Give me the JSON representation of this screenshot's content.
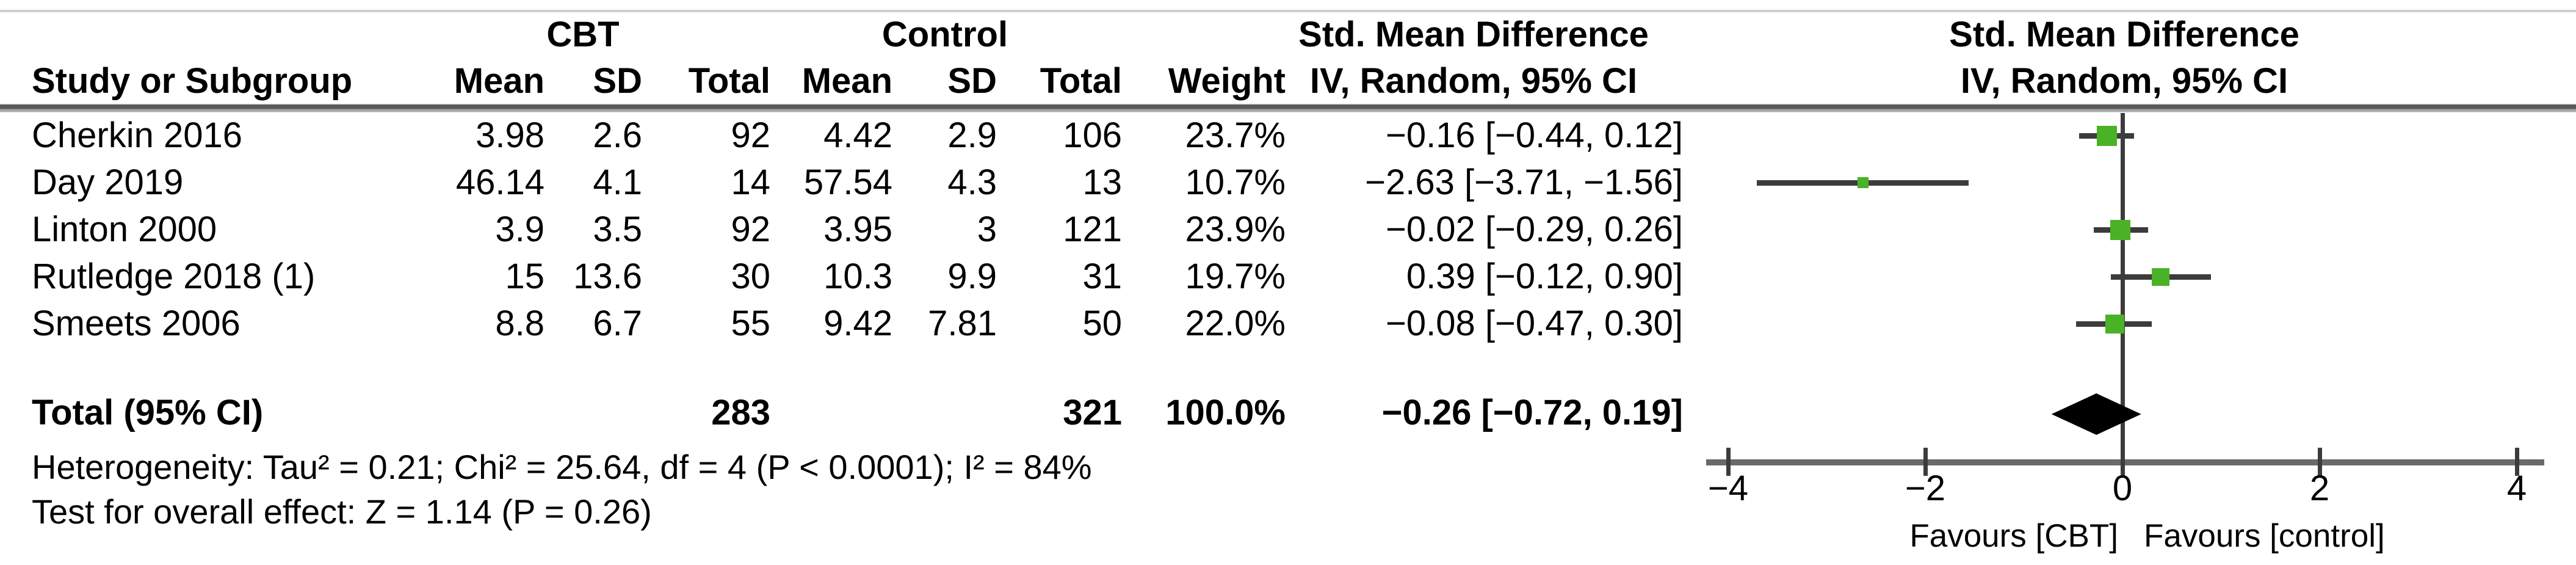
{
  "table": {
    "cbt_group_label": "CBT",
    "control_group_label": "Control",
    "smd_text_group_label": "Std. Mean Difference",
    "smd_plot_group_label": "Std. Mean Difference",
    "study_col_header": "Study or Subgroup",
    "sub_headers": {
      "mean_cbt": "Mean",
      "sd_cbt": "SD",
      "total_cbt": "Total",
      "mean_control": "Mean",
      "sd_control": "SD",
      "total_control": "Total",
      "weight": "Weight",
      "ci_text": "IV, Random, 95% CI",
      "ci_plot": "IV, Random, 95% CI"
    },
    "rows": [
      {
        "study": "Cherkin 2016",
        "mean1": "3.98",
        "sd1": "2.6",
        "total1": "92",
        "mean2": "4.42",
        "sd2": "2.9",
        "total2": "106",
        "weight": "23.7%",
        "ci": "−0.16 [−0.44, 0.12]"
      },
      {
        "study": "Day 2019",
        "mean1": "46.14",
        "sd1": "4.1",
        "total1": "14",
        "mean2": "57.54",
        "sd2": "4.3",
        "total2": "13",
        "weight": "10.7%",
        "ci": "−2.63 [−3.71, −1.56]"
      },
      {
        "study": "Linton 2000",
        "mean1": "3.9",
        "sd1": "3.5",
        "total1": "92",
        "mean2": "3.95",
        "sd2": "3",
        "total2": "121",
        "weight": "23.9%",
        "ci": "−0.02 [−0.29, 0.26]"
      },
      {
        "study": "Rutledge 2018 (1)",
        "mean1": "15",
        "sd1": "13.6",
        "total1": "30",
        "mean2": "10.3",
        "sd2": "9.9",
        "total2": "31",
        "weight": "19.7%",
        "ci": "0.39 [−0.12, 0.90]"
      },
      {
        "study": "Smeets 2006",
        "mean1": "8.8",
        "sd1": "6.7",
        "total1": "55",
        "mean2": "9.42",
        "sd2": "7.81",
        "total2": "50",
        "weight": "22.0%",
        "ci": "−0.08 [−0.47, 0.30]"
      }
    ],
    "total_row": {
      "label": "Total (95% CI)",
      "total1": "283",
      "total2": "321",
      "weight": "100.0%",
      "ci": "−0.26 [−0.72, 0.19]"
    },
    "footnotes": {
      "heterogeneity": "Heterogeneity: Tau² = 0.21; Chi² = 25.64, df = 4 (P < 0.0001); I² = 84%",
      "overall_effect": "Test for overall effect: Z = 1.14 (P = 0.26)"
    }
  },
  "chart_data": {
    "type": "forest",
    "effect_measure": "Std. Mean Difference (IV, Random, 95% CI)",
    "x_axis": {
      "ticks": [
        -4,
        -2,
        0,
        2,
        4
      ],
      "min": -4.2,
      "max": 4.3,
      "label_left": "Favours [CBT]",
      "label_right": "Favours [control]"
    },
    "studies": [
      {
        "name": "Cherkin 2016",
        "est": -0.16,
        "ci_low": -0.44,
        "ci_high": 0.12,
        "weight_pct": 23.7
      },
      {
        "name": "Day 2019",
        "est": -2.63,
        "ci_low": -3.71,
        "ci_high": -1.56,
        "weight_pct": 10.7
      },
      {
        "name": "Linton 2000",
        "est": -0.02,
        "ci_low": -0.29,
        "ci_high": 0.26,
        "weight_pct": 23.9
      },
      {
        "name": "Rutledge 2018 (1)",
        "est": 0.39,
        "ci_low": -0.12,
        "ci_high": 0.9,
        "weight_pct": 19.7
      },
      {
        "name": "Smeets 2006",
        "est": -0.08,
        "ci_low": -0.47,
        "ci_high": 0.3,
        "weight_pct": 22.0
      }
    ],
    "overall": {
      "est": -0.26,
      "ci_low": -0.72,
      "ci_high": 0.19
    },
    "colors": {
      "marker_green": "#4ab227",
      "ci_line": "#3c3c3c",
      "axis_gray": "#6a6a6a",
      "summary_diamond": "#000000"
    }
  }
}
